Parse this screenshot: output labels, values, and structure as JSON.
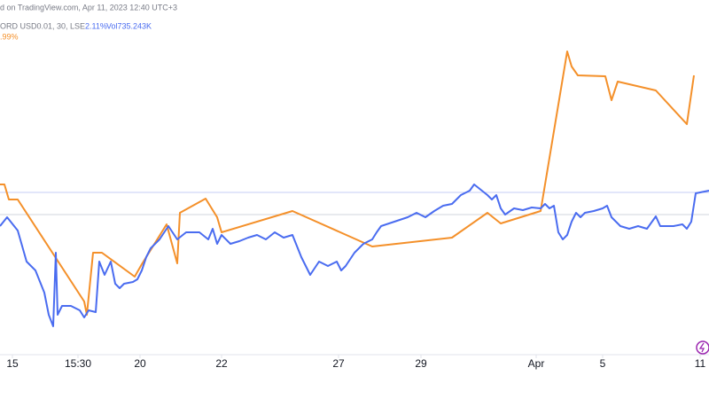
{
  "header": {
    "source": "d on TradingView.com, Apr 11, 2023 12:40 UTC+3",
    "symbol": "ORD USD0.01, 30, LSE",
    "change": "2.11%",
    "volume": "Vol735.243K",
    "compare_change": ".99%"
  },
  "chart_data": {
    "type": "line",
    "x": [
      0,
      8,
      12,
      20,
      30,
      40,
      50,
      55,
      60,
      63,
      65,
      70,
      80,
      90,
      95,
      100,
      108,
      112,
      118,
      125,
      130,
      135,
      140,
      150,
      155,
      160,
      165,
      170,
      180,
      190,
      200,
      210,
      225,
      235,
      240,
      245,
      250,
      260,
      270,
      280,
      290,
      300,
      310,
      320,
      330,
      340,
      350,
      360,
      370,
      380,
      385,
      390,
      400,
      410,
      420,
      425,
      430,
      445,
      460,
      470,
      480,
      490,
      500,
      510,
      520,
      530,
      535,
      540,
      550,
      555,
      560,
      565,
      570,
      580,
      590,
      600,
      610,
      615,
      620,
      625,
      630,
      635,
      640,
      645,
      650,
      655,
      660,
      670,
      680,
      685,
      690,
      700,
      710,
      720,
      730,
      740,
      745,
      760,
      770,
      775,
      780,
      785,
      795,
      800
    ],
    "series": [
      {
        "name": "ORD USD0.01, 30, LSE",
        "color": "#4a6cf0",
        "values": [
          145,
          155,
          150,
          140,
          105,
          95,
          70,
          45,
          32,
          115,
          45,
          55,
          55,
          50,
          42,
          50,
          48,
          105,
          90,
          105,
          80,
          75,
          80,
          82,
          85,
          95,
          110,
          120,
          130,
          145,
          130,
          138,
          138,
          130,
          142,
          125,
          135,
          125,
          128,
          132,
          135,
          130,
          138,
          132,
          135,
          110,
          90,
          105,
          100,
          105,
          95,
          100,
          115,
          125,
          130,
          138,
          145,
          150,
          155,
          160,
          155,
          162,
          168,
          170,
          180,
          185,
          192,
          188,
          180,
          175,
          180,
          165,
          158,
          165,
          163,
          166,
          165,
          170,
          165,
          168,
          138,
          130,
          135,
          150,
          160,
          155,
          160,
          162,
          165,
          168,
          155,
          145,
          142,
          145,
          142,
          156,
          145,
          145,
          147,
          142,
          150,
          182,
          184,
          185
        ]
      },
      {
        "name": ".99%",
        "color": "#f4902a",
        "x": [
          0,
          5,
          10,
          20,
          95,
          98,
          105,
          115,
          152,
          160,
          188,
          200,
          203,
          232,
          245,
          250,
          330,
          420,
          510,
          550,
          565,
          610,
          640,
          645,
          652,
          683,
          690,
          697,
          740,
          775,
          783
        ],
        "values": [
          192,
          192,
          175,
          175,
          60,
          45,
          115,
          115,
          88,
          102,
          147,
          103,
          160,
          176,
          155,
          138,
          162,
          122,
          132,
          160,
          148,
          162,
          342,
          325,
          315,
          314,
          287,
          308,
          298,
          260,
          315
        ]
      }
    ],
    "xlim": [
      0,
      800
    ],
    "ylim": [
      0,
      400
    ],
    "xticks": [
      {
        "value": 14,
        "label": "15"
      },
      {
        "value": 88,
        "label": "15:30"
      },
      {
        "value": 158,
        "label": "20"
      },
      {
        "value": 250,
        "label": "22"
      },
      {
        "value": 382,
        "label": "27"
      },
      {
        "value": 475,
        "label": "29"
      },
      {
        "value": 605,
        "label": "Apr"
      },
      {
        "value": 680,
        "label": "5"
      },
      {
        "value": 790,
        "label": "11"
      }
    ],
    "reference_lines": [
      183,
      158
    ]
  }
}
